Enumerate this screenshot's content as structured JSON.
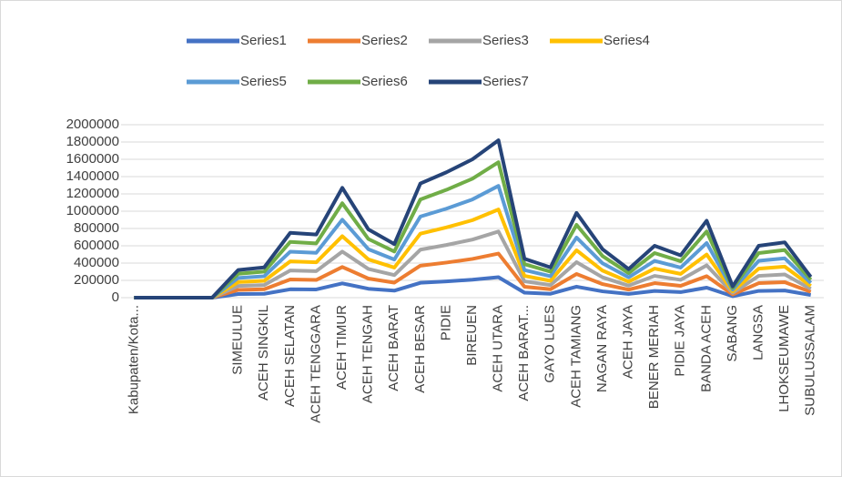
{
  "chart_data": {
    "type": "stacked-line",
    "categories": [
      "Kabupaten/Kota...",
      null,
      null,
      null,
      "SIMEULUE",
      "ACEH SINGKIL",
      "ACEH SELATAN",
      "ACEH TENGGARA",
      "ACEH TIMUR",
      "ACEH TENGAH",
      "ACEH BARAT",
      "ACEH BESAR",
      "PIDIE",
      "BIREUEN",
      "ACEH UTARA",
      "ACEH BARAT...",
      "GAYO LUES",
      "ACEH TAMIANG",
      "NAGAN RAYA",
      "ACEH JAYA",
      "BENER MERIAH",
      "PIDIE JAYA",
      "BANDA ACEH",
      "SABANG",
      "LANGSA",
      "LHOKSEUMAWE",
      "SUBULUSSALAM"
    ],
    "series": [
      {
        "name": "Series1",
        "color": "#4472c4",
        "values": [
          0,
          0,
          0,
          0,
          42000,
          45000,
          97000,
          95000,
          165000,
          103000,
          81000,
          172000,
          188000,
          208000,
          237000,
          58000,
          45000,
          127000,
          73000,
          43000,
          78000,
          64000,
          116000,
          17000,
          78000,
          83000,
          31000
        ]
      },
      {
        "name": "Series2",
        "color": "#ed7d31",
        "values": [
          0,
          0,
          0,
          0,
          48000,
          52000,
          113000,
          110000,
          190000,
          118000,
          93000,
          198000,
          218000,
          240000,
          273000,
          68000,
          52000,
          147000,
          84000,
          50000,
          90000,
          73000,
          133000,
          20000,
          90000,
          96000,
          36000
        ]
      },
      {
        "name": "Series3",
        "color": "#a5a5a5",
        "values": [
          0,
          0,
          0,
          0,
          45000,
          49000,
          105000,
          102000,
          178000,
          111000,
          87000,
          185000,
          203000,
          224000,
          255000,
          63000,
          49000,
          137000,
          78000,
          46000,
          84000,
          69000,
          125000,
          18000,
          84000,
          90000,
          34000
        ]
      },
      {
        "name": "Series4",
        "color": "#ffc000",
        "values": [
          0,
          0,
          0,
          0,
          45000,
          49000,
          105000,
          102000,
          178000,
          111000,
          87000,
          185000,
          203000,
          224000,
          255000,
          63000,
          49000,
          137000,
          78000,
          46000,
          84000,
          69000,
          125000,
          18000,
          84000,
          90000,
          34000
        ]
      },
      {
        "name": "Series5",
        "color": "#5b9bd5",
        "values": [
          0,
          0,
          0,
          0,
          48000,
          53000,
          112000,
          110000,
          191000,
          118000,
          93000,
          198000,
          217000,
          240000,
          273000,
          67000,
          53000,
          147000,
          84000,
          50000,
          90000,
          73000,
          133000,
          20000,
          90000,
          96000,
          36000
        ]
      },
      {
        "name": "Series6",
        "color": "#70ad47",
        "values": [
          0,
          0,
          0,
          0,
          48000,
          53000,
          113000,
          109000,
          190000,
          118000,
          93000,
          198000,
          218000,
          240000,
          273000,
          68000,
          53000,
          147000,
          84000,
          49000,
          90000,
          74000,
          134000,
          19000,
          90000,
          96000,
          36000
        ]
      },
      {
        "name": "Series7",
        "color": "#264478",
        "values": [
          0,
          0,
          0,
          0,
          44000,
          49000,
          105000,
          102000,
          178000,
          111000,
          86000,
          184000,
          203000,
          224000,
          254000,
          63000,
          49000,
          138000,
          79000,
          46000,
          84000,
          68000,
          124000,
          18000,
          84000,
          89000,
          33000
        ]
      }
    ],
    "ylim": [
      0,
      2000000
    ],
    "yticks": [
      0,
      200000,
      400000,
      600000,
      800000,
      1000000,
      1200000,
      1400000,
      1600000,
      1800000,
      2000000
    ],
    "grid": true,
    "legend": "top"
  }
}
